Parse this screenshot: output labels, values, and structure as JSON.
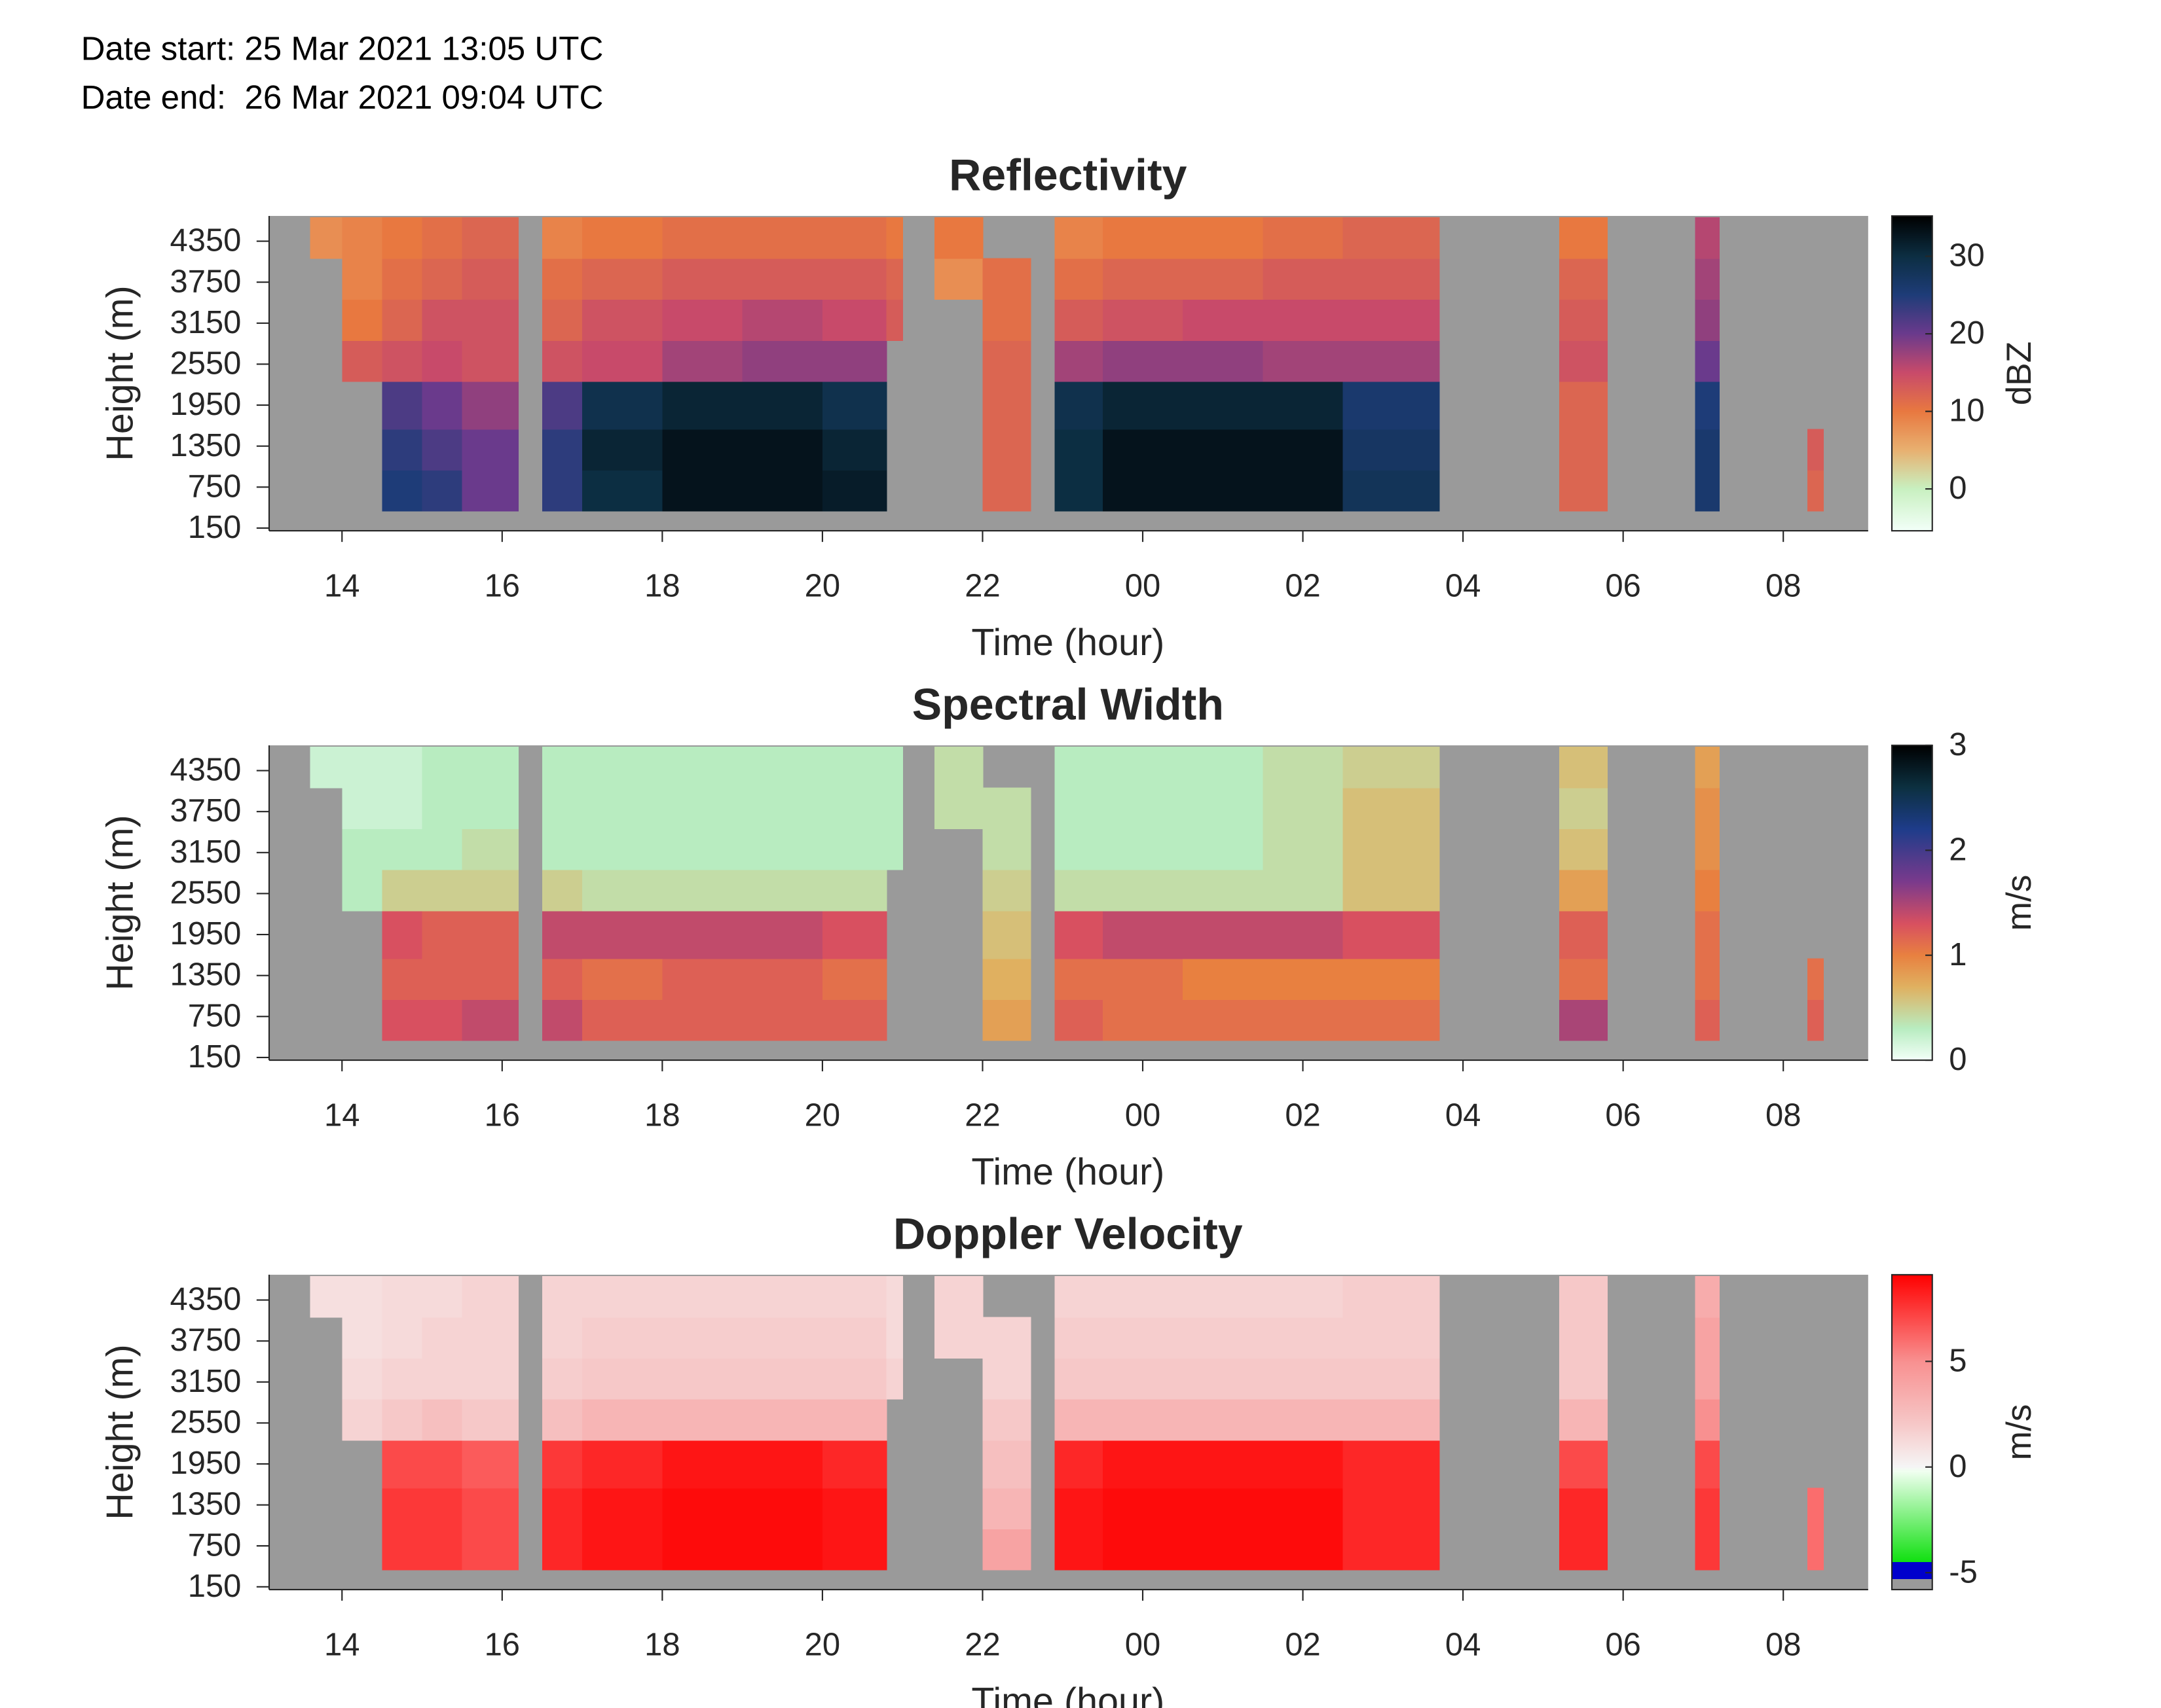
{
  "header": {
    "date_start": "Date start: 25 Mar 2021 13:05 UTC",
    "date_end": "Date end:  26 Mar 2021 09:04 UTC"
  },
  "chart_data": [
    {
      "type": "heatmap",
      "title": "Reflectivity",
      "xlabel": "Time (hour)",
      "ylabel": "Height (m)",
      "colorbar_label": "dBZ",
      "xlim": [
        13.09,
        33.06
      ],
      "ylim": [
        110,
        4720
      ],
      "xticks": [
        14,
        16,
        18,
        20,
        22,
        {
          "value": 24,
          "label": "00"
        },
        {
          "value": 26,
          "label": "02"
        },
        {
          "value": 28,
          "label": "04"
        },
        {
          "value": 30,
          "label": "06"
        },
        {
          "value": 32,
          "label": "08"
        }
      ],
      "yticks": [
        150,
        750,
        1350,
        1950,
        2550,
        3150,
        3750,
        4350
      ],
      "background": "#9a9a9a",
      "clim": [
        -5.4,
        35.2
      ],
      "cticks": [
        0,
        10,
        20,
        30
      ],
      "colorscale": [
        {
          "value": -5.4,
          "color": "#f2fff8"
        },
        {
          "value": 0,
          "color": "#c8f0c0"
        },
        {
          "value": 5,
          "color": "#e8b070"
        },
        {
          "value": 10,
          "color": "#e87840"
        },
        {
          "value": 15,
          "color": "#c84a6a"
        },
        {
          "value": 20,
          "color": "#6a3a8c"
        },
        {
          "value": 25,
          "color": "#1e3c78"
        },
        {
          "value": 30,
          "color": "#0c2e42"
        },
        {
          "value": 35.2,
          "color": "#000000"
        }
      ],
      "xbins": [
        13.6,
        14.0,
        14.5,
        15.0,
        15.5,
        16.2,
        16.5,
        17.0,
        18.0,
        19.0,
        20.0,
        20.8,
        21.0,
        21.4,
        22.0,
        22.6,
        22.9,
        23.5,
        24.5,
        25.5,
        26.5,
        27.7,
        29.2,
        29.8,
        30.9,
        31.2,
        32.3,
        32.5
      ],
      "ybins": [
        400,
        1000,
        1600,
        2300,
        2900,
        3500,
        4100,
        4700
      ],
      "z": [
        [
          null,
          null,
          25,
          24,
          20,
          null,
          24,
          30,
          33,
          33,
          32,
          null,
          null,
          null,
          12,
          null,
          30,
          33,
          33,
          33,
          28,
          null,
          12,
          null,
          26,
          null,
          12
        ],
        [
          null,
          null,
          24,
          22,
          20,
          null,
          24,
          31,
          33,
          33,
          31,
          null,
          null,
          null,
          12,
          null,
          30,
          33,
          33,
          33,
          27,
          null,
          12,
          null,
          26,
          null,
          13
        ],
        [
          null,
          null,
          22,
          20,
          18,
          null,
          22,
          29,
          31,
          31,
          29,
          null,
          null,
          null,
          12,
          null,
          29,
          31,
          31,
          31,
          26,
          null,
          12,
          null,
          25,
          null,
          null
        ],
        [
          null,
          13,
          14,
          15,
          14,
          null,
          14,
          15,
          17,
          18,
          18,
          null,
          null,
          null,
          12,
          null,
          17,
          18,
          18,
          17,
          17,
          null,
          14,
          null,
          20,
          null,
          null
        ],
        [
          null,
          10,
          12,
          14,
          14,
          null,
          12,
          14,
          15,
          16,
          15,
          13,
          null,
          null,
          11,
          null,
          13,
          14,
          15,
          15,
          15,
          null,
          13,
          null,
          18,
          null,
          null
        ],
        [
          null,
          9,
          11,
          12,
          13,
          null,
          11,
          12,
          13,
          13,
          13,
          12,
          null,
          8,
          11,
          null,
          11,
          12,
          12,
          13,
          13,
          null,
          12,
          null,
          17,
          null,
          null
        ],
        [
          8,
          9,
          10,
          11,
          12,
          null,
          9,
          10,
          11,
          11,
          11,
          10,
          null,
          10,
          null,
          null,
          9,
          10,
          10,
          11,
          12,
          null,
          10,
          null,
          16,
          null,
          null
        ]
      ]
    },
    {
      "type": "heatmap",
      "title": "Spectral Width",
      "xlabel": "Time (hour)",
      "ylabel": "Height (m)",
      "colorbar_label": "m/s",
      "xlim": [
        13.09,
        33.06
      ],
      "ylim": [
        110,
        4720
      ],
      "xticks": [
        14,
        16,
        18,
        20,
        22,
        {
          "value": 24,
          "label": "00"
        },
        {
          "value": 26,
          "label": "02"
        },
        {
          "value": 28,
          "label": "04"
        },
        {
          "value": 30,
          "label": "06"
        },
        {
          "value": 32,
          "label": "08"
        }
      ],
      "yticks": [
        150,
        750,
        1350,
        1950,
        2550,
        3150,
        3750,
        4350
      ],
      "background": "#9a9a9a",
      "clim": [
        0,
        3
      ],
      "cticks": [
        0,
        1,
        2,
        3
      ],
      "colorscale": [
        {
          "value": 0,
          "color": "#f2fff8"
        },
        {
          "value": 0.3,
          "color": "#b8ecc0"
        },
        {
          "value": 0.7,
          "color": "#e0b060"
        },
        {
          "value": 1,
          "color": "#e88040"
        },
        {
          "value": 1.3,
          "color": "#d85060"
        },
        {
          "value": 1.7,
          "color": "#7a3a8c"
        },
        {
          "value": 2.2,
          "color": "#1e3c8a"
        },
        {
          "value": 2.6,
          "color": "#0c3040"
        },
        {
          "value": 3,
          "color": "#000000"
        }
      ],
      "xbins": [
        13.6,
        14.0,
        14.5,
        15.0,
        15.5,
        16.2,
        16.5,
        17.0,
        18.0,
        19.0,
        20.0,
        20.8,
        21.0,
        21.4,
        22.0,
        22.6,
        22.9,
        23.5,
        24.5,
        25.5,
        26.5,
        27.7,
        29.2,
        29.8,
        30.9,
        31.2,
        32.3,
        32.5
      ],
      "ybins": [
        400,
        1000,
        1600,
        2300,
        2900,
        3500,
        4100,
        4700
      ],
      "z": [
        [
          null,
          null,
          1.3,
          1.3,
          1.4,
          null,
          1.4,
          1.2,
          1.2,
          1.2,
          1.2,
          null,
          null,
          null,
          0.8,
          null,
          1.2,
          1.1,
          1.1,
          1.1,
          1.1,
          null,
          1.5,
          null,
          1.2,
          null,
          1.2
        ],
        [
          null,
          null,
          1.2,
          1.2,
          1.2,
          null,
          1.2,
          1.1,
          1.2,
          1.2,
          1.1,
          null,
          null,
          null,
          0.7,
          null,
          1.1,
          1.1,
          1.0,
          1.0,
          1.0,
          null,
          1.1,
          null,
          1.1,
          null,
          1.1
        ],
        [
          null,
          null,
          1.3,
          1.2,
          1.2,
          null,
          1.4,
          1.4,
          1.4,
          1.4,
          1.3,
          null,
          null,
          null,
          0.6,
          null,
          1.3,
          1.4,
          1.4,
          1.4,
          1.3,
          null,
          1.2,
          null,
          1.1,
          null,
          null
        ],
        [
          null,
          0.3,
          0.5,
          0.5,
          0.5,
          null,
          0.5,
          0.4,
          0.4,
          0.4,
          0.4,
          null,
          null,
          null,
          0.5,
          null,
          0.4,
          0.4,
          0.4,
          0.4,
          0.6,
          null,
          0.8,
          null,
          1.0,
          null,
          null
        ],
        [
          null,
          0.3,
          0.3,
          0.3,
          0.4,
          null,
          0.3,
          0.3,
          0.3,
          0.3,
          0.3,
          0.3,
          null,
          null,
          0.4,
          null,
          0.3,
          0.3,
          0.3,
          0.4,
          0.6,
          null,
          0.6,
          null,
          0.9,
          null,
          null
        ],
        [
          null,
          0.2,
          0.2,
          0.3,
          0.3,
          null,
          0.3,
          0.3,
          0.3,
          0.3,
          0.3,
          0.3,
          null,
          0.4,
          0.4,
          null,
          0.3,
          0.3,
          0.3,
          0.4,
          0.6,
          null,
          0.5,
          null,
          0.9,
          null,
          null
        ],
        [
          0.2,
          0.2,
          0.2,
          0.3,
          0.3,
          null,
          0.3,
          0.3,
          0.3,
          0.3,
          0.3,
          0.3,
          null,
          0.4,
          null,
          null,
          0.3,
          0.3,
          0.3,
          0.4,
          0.5,
          null,
          0.6,
          null,
          0.8,
          null,
          null
        ]
      ]
    },
    {
      "type": "heatmap",
      "title": "Doppler Velocity",
      "xlabel": "Time (hour)",
      "ylabel": "Height (m)",
      "colorbar_label": "m/s",
      "xlim": [
        13.09,
        33.06
      ],
      "ylim": [
        110,
        4720
      ],
      "xticks": [
        14,
        16,
        18,
        20,
        22,
        {
          "value": 24,
          "label": "00"
        },
        {
          "value": 26,
          "label": "02"
        },
        {
          "value": 28,
          "label": "04"
        },
        {
          "value": 30,
          "label": "06"
        },
        {
          "value": 32,
          "label": "08"
        }
      ],
      "yticks": [
        150,
        750,
        1350,
        1950,
        2550,
        3150,
        3750,
        4350
      ],
      "background": "#9a9a9a",
      "clim": [
        -5.8,
        9.1
      ],
      "cticks": [
        -5,
        0,
        5
      ],
      "colorscale": [
        {
          "value": -5.8,
          "color": "#9a9a9a"
        },
        {
          "value": -5.3,
          "color": "#9a9a9a"
        },
        {
          "value": -5.3,
          "color": "#0000cc"
        },
        {
          "value": -4.5,
          "color": "#0000cc"
        },
        {
          "value": -4.5,
          "color": "#10e010"
        },
        {
          "value": -0.2,
          "color": "#f0fff0"
        },
        {
          "value": 0,
          "color": "#f5f5f5"
        },
        {
          "value": 2,
          "color": "#f6c8c8"
        },
        {
          "value": 5,
          "color": "#f89090"
        },
        {
          "value": 9.1,
          "color": "#ff0000"
        }
      ],
      "xbins": [
        13.6,
        14.0,
        14.5,
        15.0,
        15.5,
        16.2,
        16.5,
        17.0,
        18.0,
        19.0,
        20.0,
        20.8,
        21.0,
        21.4,
        22.0,
        22.6,
        22.9,
        23.5,
        24.5,
        25.5,
        26.5,
        27.7,
        29.2,
        29.8,
        30.9,
        31.2,
        32.3,
        32.5
      ],
      "ybins": [
        400,
        1000,
        1600,
        2300,
        2900,
        3500,
        4100,
        4700
      ],
      "z": [
        [
          null,
          null,
          7.5,
          7.5,
          7,
          null,
          8,
          8.5,
          8.8,
          8.8,
          8.5,
          null,
          null,
          null,
          4,
          null,
          8.5,
          8.8,
          8.8,
          8.8,
          8,
          null,
          8,
          null,
          7.5,
          null,
          6
        ],
        [
          null,
          null,
          7.5,
          7.5,
          7,
          null,
          8,
          8.5,
          8.8,
          8.8,
          8.5,
          null,
          null,
          null,
          3,
          null,
          8.5,
          8.8,
          8.8,
          8.8,
          8,
          null,
          8,
          null,
          7.5,
          null,
          6
        ],
        [
          null,
          null,
          7,
          7,
          6.5,
          null,
          7.5,
          8,
          8.5,
          8.5,
          8,
          null,
          null,
          null,
          2.5,
          null,
          8,
          8.5,
          8.5,
          8.5,
          8,
          null,
          7,
          null,
          7,
          null,
          null
        ],
        [
          null,
          1.5,
          2,
          2.5,
          2,
          null,
          2.5,
          3,
          3,
          3,
          3,
          null,
          null,
          null,
          2,
          null,
          3,
          3,
          3,
          3,
          3,
          null,
          3,
          null,
          5,
          null,
          null
        ],
        [
          null,
          1.2,
          1.5,
          1.5,
          1.5,
          null,
          1.8,
          2,
          2,
          2,
          2,
          1.5,
          null,
          null,
          1.5,
          null,
          2,
          2,
          2,
          2,
          2,
          null,
          2,
          null,
          4,
          null,
          null
        ],
        [
          null,
          1,
          1.2,
          1.5,
          1.5,
          null,
          1.5,
          1.8,
          1.8,
          1.8,
          1.8,
          1.2,
          null,
          1.5,
          1.5,
          null,
          1.8,
          1.8,
          1.8,
          1.8,
          1.8,
          null,
          2,
          null,
          4,
          null,
          null
        ],
        [
          1,
          1,
          1.2,
          1.2,
          1.5,
          null,
          1.5,
          1.5,
          1.5,
          1.5,
          1.5,
          1.2,
          null,
          1.5,
          null,
          null,
          1.5,
          1.5,
          1.5,
          1.5,
          1.8,
          null,
          2,
          null,
          3.5,
          null,
          null
        ]
      ]
    }
  ]
}
